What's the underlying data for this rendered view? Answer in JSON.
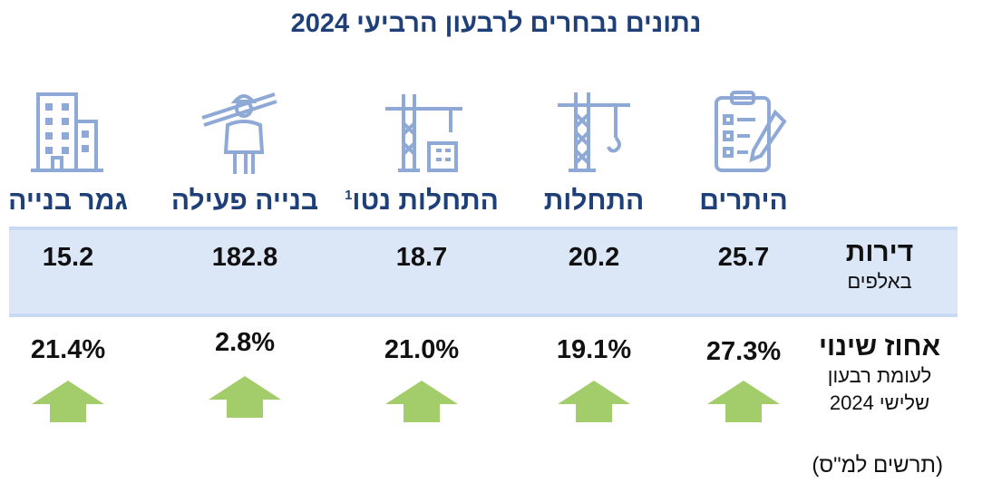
{
  "title": "נתונים נבחרים לרבעון הרביעי 2024",
  "columns": [
    {
      "key": "permits",
      "label": "היתרים",
      "value": "25.7",
      "change": "27.3%",
      "icon": "clipboard-icon"
    },
    {
      "key": "starts",
      "label": "התחלות",
      "value": "20.2",
      "change": "19.1%",
      "icon": "crane-icon"
    },
    {
      "key": "net_starts",
      "label": "התחלות נטו",
      "footnote": "1",
      "value": "18.7",
      "change": "21.0%",
      "icon": "crane-building-icon"
    },
    {
      "key": "active",
      "label": "בנייה פעילה",
      "value": "182.8",
      "change": "2.8%",
      "icon": "construction-worker-icon"
    },
    {
      "key": "completions",
      "label": "גמר בנייה",
      "value": "15.2",
      "change": "21.4%",
      "icon": "building-icon"
    }
  ],
  "row_apartments": {
    "label": "דירות",
    "unit": "באלפים"
  },
  "row_change": {
    "label": "אחוז שינוי",
    "sub_line1": "לעומת רבעון",
    "sub_line2": "שלישי 2024"
  },
  "source": "(תרשים למ\"ס)",
  "colors": {
    "title": "#1f3f79",
    "icon": "#8fa9d6",
    "band": "#dbe6f7",
    "arrow": "#a3cc6b"
  }
}
